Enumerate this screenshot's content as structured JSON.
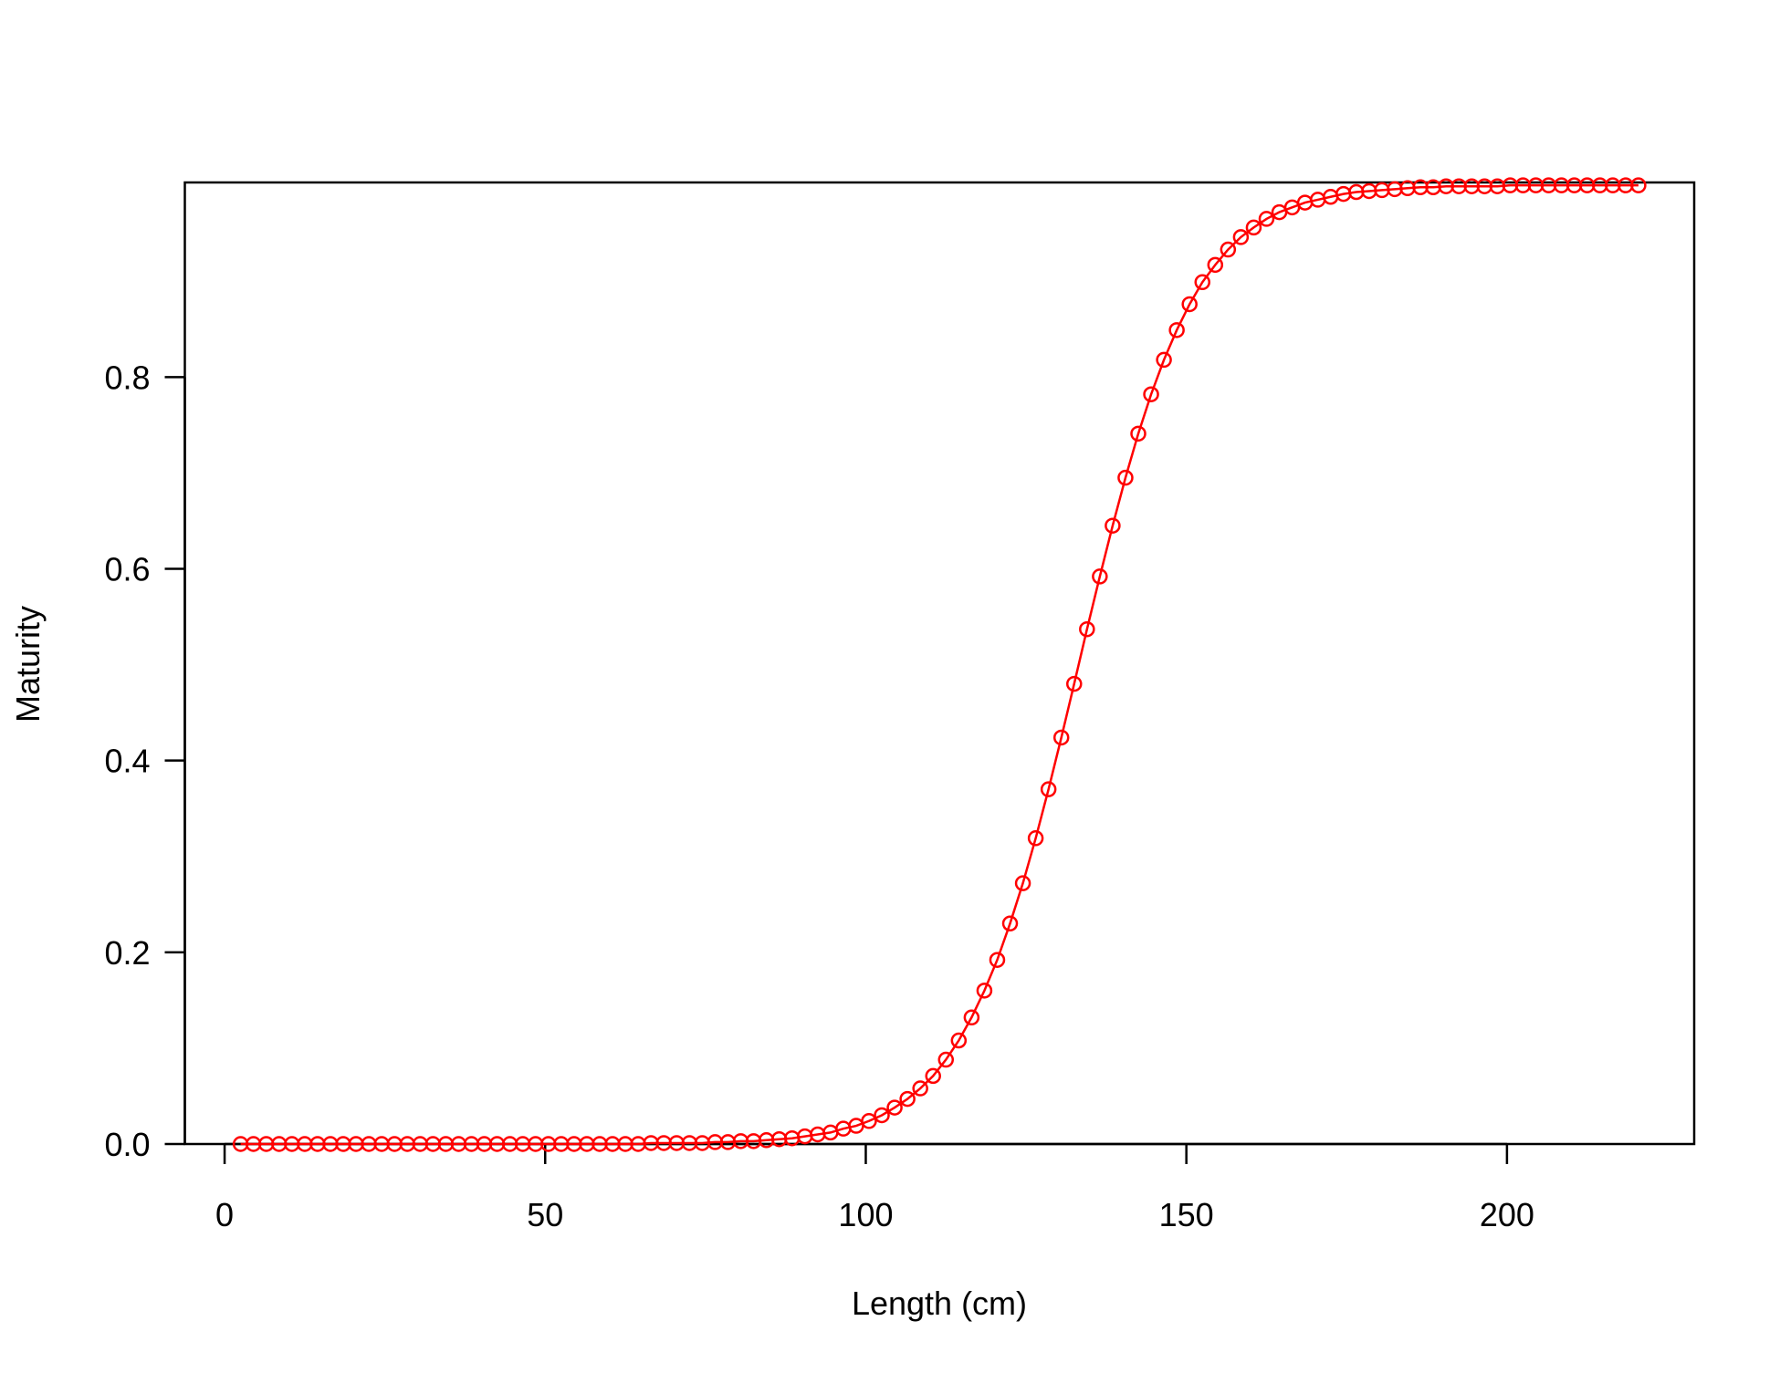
{
  "chart_data": {
    "type": "line",
    "xlabel": "Length (cm)",
    "ylabel": "Maturity",
    "color": "#ff0000",
    "x": [
      2.5,
      4.5,
      6.5,
      8.5,
      10.5,
      12.5,
      14.5,
      16.5,
      18.5,
      20.5,
      22.5,
      24.5,
      26.5,
      28.5,
      30.5,
      32.5,
      34.5,
      36.5,
      38.5,
      40.5,
      42.5,
      44.5,
      46.5,
      48.5,
      50.5,
      52.5,
      54.5,
      56.5,
      58.5,
      60.5,
      62.5,
      64.5,
      66.5,
      68.5,
      70.5,
      72.5,
      74.5,
      76.5,
      78.5,
      80.5,
      82.5,
      84.5,
      86.5,
      88.5,
      90.5,
      92.5,
      94.5,
      96.5,
      98.5,
      100.5,
      102.5,
      104.5,
      106.5,
      108.5,
      110.5,
      112.5,
      114.5,
      116.5,
      118.5,
      120.5,
      122.5,
      124.5,
      126.5,
      128.5,
      130.5,
      132.5,
      134.5,
      136.5,
      138.5,
      140.5,
      142.5,
      144.5,
      146.5,
      148.5,
      150.5,
      152.5,
      154.5,
      156.5,
      158.5,
      160.5,
      162.5,
      164.5,
      166.5,
      168.5,
      170.5,
      172.5,
      174.5,
      176.5,
      178.5,
      180.5,
      182.5,
      184.5,
      186.5,
      188.5,
      190.5,
      192.5,
      194.5,
      196.5,
      198.5,
      200.5,
      202.5,
      204.5,
      206.5,
      208.5,
      210.5,
      212.5,
      214.5,
      216.5,
      218.5,
      220.5
    ],
    "values": [
      0,
      0,
      0,
      0,
      0,
      0,
      0,
      0,
      0,
      0,
      0,
      0,
      0,
      0,
      0,
      0,
      0,
      0,
      0,
      0,
      0,
      0,
      0,
      0,
      0,
      0,
      0,
      0,
      0,
      0,
      0,
      0,
      0.001,
      0.001,
      0.001,
      0.001,
      0.001,
      0.002,
      0.002,
      0.003,
      0.003,
      0.004,
      0.005,
      0.006,
      0.008,
      0.01,
      0.012,
      0.016,
      0.019,
      0.024,
      0.03,
      0.038,
      0.047,
      0.058,
      0.071,
      0.088,
      0.108,
      0.132,
      0.16,
      0.192,
      0.23,
      0.272,
      0.319,
      0.37,
      0.424,
      0.48,
      0.537,
      0.592,
      0.645,
      0.695,
      0.741,
      0.782,
      0.818,
      0.849,
      0.876,
      0.899,
      0.917,
      0.933,
      0.946,
      0.956,
      0.965,
      0.972,
      0.977,
      0.982,
      0.985,
      0.988,
      0.991,
      0.993,
      0.994,
      0.995,
      0.996,
      0.997,
      0.998,
      0.998,
      0.999,
      0.999,
      0.999,
      0.999,
      0.999,
      1,
      1,
      1,
      1,
      1,
      1,
      1,
      1,
      1,
      1,
      1
    ],
    "xlim": [
      -6.2,
      229.2
    ],
    "ylim": [
      0,
      1.003
    ],
    "xticks": [
      0,
      50,
      100,
      150,
      200
    ],
    "yticks": [
      {
        "value": 0,
        "label": "0.0"
      },
      0.2,
      0.4,
      0.6,
      0.8
    ]
  }
}
